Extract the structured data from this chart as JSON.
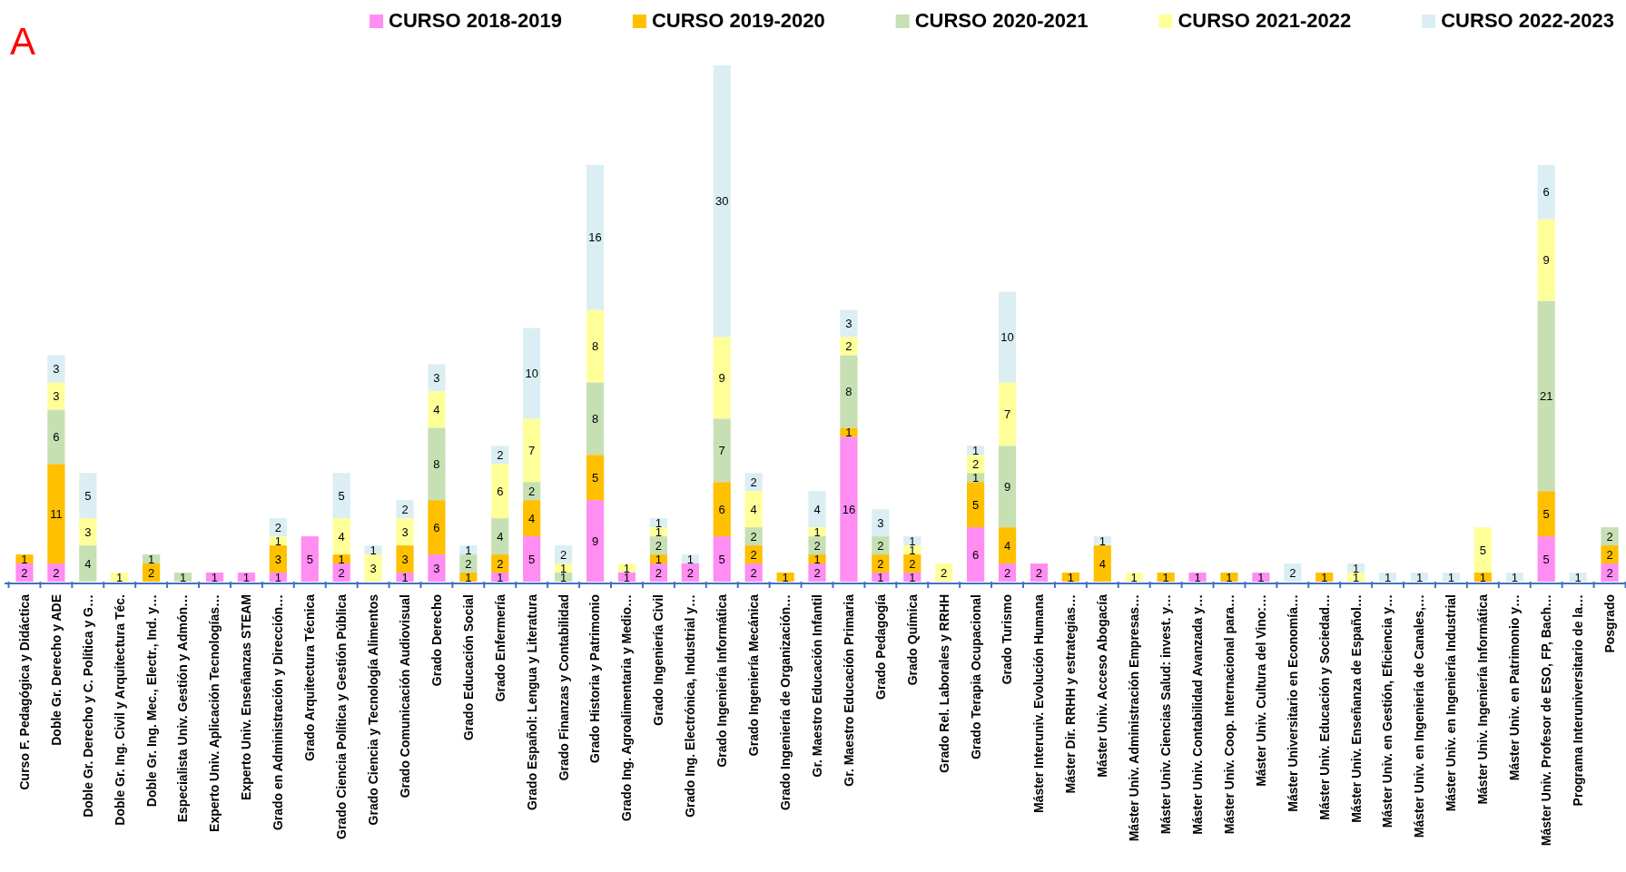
{
  "chart_data": {
    "type": "bar",
    "stacked": true,
    "data_labels": true,
    "legend": "top right",
    "tick_labels": "x",
    "annotations": [
      "A"
    ],
    "categories": [
      "Curso F. Pedagógica y Didáctica",
      "Doble Gr. Derecho y ADE",
      "Doble Gr. Derecho y C. Política y G…",
      "Doble Gr. Ing. Civil y Arquitectura Téc.",
      "Doble Gr. Ing. Mec., Electr., Ind. y…",
      "Especialista Univ. Gestión y Admón…",
      "Experto Univ. Aplicación Tecnologías…",
      "Experto Univ. Enseñanzas STEAM",
      "Grado en Administración y Dirección…",
      "Grado Arquitectura Técnica",
      "Grado Ciencia Política y Gestión Pública",
      "Grado Ciencia y Tecnología Alimentos",
      "Grado Comunicación Audiovisual",
      "Grado Derecho",
      "Grado Educación Social",
      "Grado Enfermería",
      "Grado Español: Lengua y Literatura",
      "Grado Finanzas y Contabilidad",
      "Grado Historia y Patrimonio",
      "Grado Ing. Agroalimentaria y Medio…",
      "Grado Ingeniería Civil",
      "Grado Ing. Electrónica, Industrial y…",
      "Grado Ingeniería Informática",
      "Grado Ingeniería Mecánica",
      "Grado Ingeniería de Organización…",
      "Gr. Maestro Educación Infantil",
      "Gr. Maestro Educación Primaria",
      "Grado Pedagogía",
      "Grado Química",
      "Grado Rel. Laborales y RRHH",
      "Grado Terapia Ocupacional",
      "Grado Turismo",
      "Máster Interuniv. Evolución Humana",
      "Máster Dir. RRHH y estrategias…",
      "Máster Univ. Acceso Abogacía",
      "Máster Univ. Administración Empresas…",
      "Máster Univ. Ciencias Salud: invest. y…",
      "Máster Univ. Contabilidad Avanzada y…",
      "Máster Univ. Coop. Internacional para…",
      "Máster Univ. Cultura del Vino:…",
      "Máster Universitario en Economía…",
      "Máster Univ. Educación y Sociedad…",
      "Máster Univ. Enseñanza de Español…",
      "Máster Univ. en Gestión, Eficiencia y…",
      "Máster Univ. en Ingeniería de Canales,…",
      "Máster Univ. en Ingeniería Industrial",
      "Máster Univ. Ingeniería Informática",
      "Máster Univ. en Patrimonio y…",
      "Máster Univ. Profesor de ESO, FP, Bach…",
      "Programa Interuniversitario de la…",
      "Posgrado"
    ],
    "series": [
      {
        "name": "CURSO 2018-2019",
        "color": "#ff8df2",
        "values": [
          2,
          2,
          null,
          null,
          null,
          null,
          1,
          1,
          1,
          5,
          2,
          null,
          1,
          3,
          null,
          1,
          5,
          null,
          9,
          1,
          2,
          2,
          5,
          2,
          null,
          2,
          16,
          1,
          1,
          null,
          6,
          2,
          2,
          null,
          null,
          null,
          null,
          1,
          null,
          1,
          null,
          null,
          null,
          null,
          null,
          null,
          null,
          null,
          5,
          null,
          2
        ]
      },
      {
        "name": "CURSO 2019-2020",
        "color": "#ffc000",
        "values": [
          1,
          11,
          null,
          null,
          2,
          null,
          null,
          null,
          3,
          null,
          1,
          null,
          3,
          6,
          1,
          2,
          4,
          null,
          5,
          null,
          1,
          null,
          6,
          2,
          1,
          1,
          1,
          2,
          2,
          null,
          5,
          4,
          null,
          1,
          4,
          null,
          1,
          null,
          1,
          null,
          null,
          1,
          null,
          null,
          null,
          null,
          1,
          null,
          5,
          null,
          2
        ]
      },
      {
        "name": "CURSO 2020-2021",
        "color": "#c6e0b4",
        "values": [
          null,
          6,
          4,
          null,
          1,
          1,
          null,
          null,
          null,
          null,
          null,
          null,
          null,
          8,
          2,
          4,
          2,
          1,
          8,
          null,
          2,
          null,
          7,
          2,
          null,
          2,
          8,
          2,
          null,
          null,
          1,
          9,
          null,
          null,
          null,
          null,
          null,
          null,
          null,
          null,
          null,
          null,
          null,
          null,
          null,
          null,
          null,
          null,
          21,
          null,
          2
        ]
      },
      {
        "name": "CURSO 2021-2022",
        "color": "#ffff99",
        "values": [
          null,
          3,
          3,
          1,
          null,
          null,
          null,
          null,
          1,
          null,
          4,
          3,
          3,
          4,
          null,
          6,
          7,
          1,
          8,
          1,
          1,
          null,
          9,
          4,
          null,
          1,
          2,
          null,
          1,
          2,
          2,
          7,
          null,
          null,
          null,
          1,
          null,
          null,
          null,
          null,
          null,
          null,
          1,
          null,
          null,
          null,
          5,
          null,
          9,
          null,
          null
        ]
      },
      {
        "name": "CURSO 2022-2023",
        "color": "#dbeef4",
        "values": [
          null,
          3,
          5,
          null,
          null,
          null,
          null,
          null,
          2,
          null,
          5,
          1,
          2,
          3,
          1,
          2,
          10,
          2,
          16,
          null,
          1,
          1,
          30,
          2,
          null,
          4,
          3,
          3,
          1,
          null,
          1,
          10,
          null,
          null,
          1,
          null,
          null,
          null,
          null,
          null,
          2,
          null,
          1,
          1,
          1,
          1,
          null,
          1,
          6,
          1,
          null
        ]
      }
    ]
  }
}
